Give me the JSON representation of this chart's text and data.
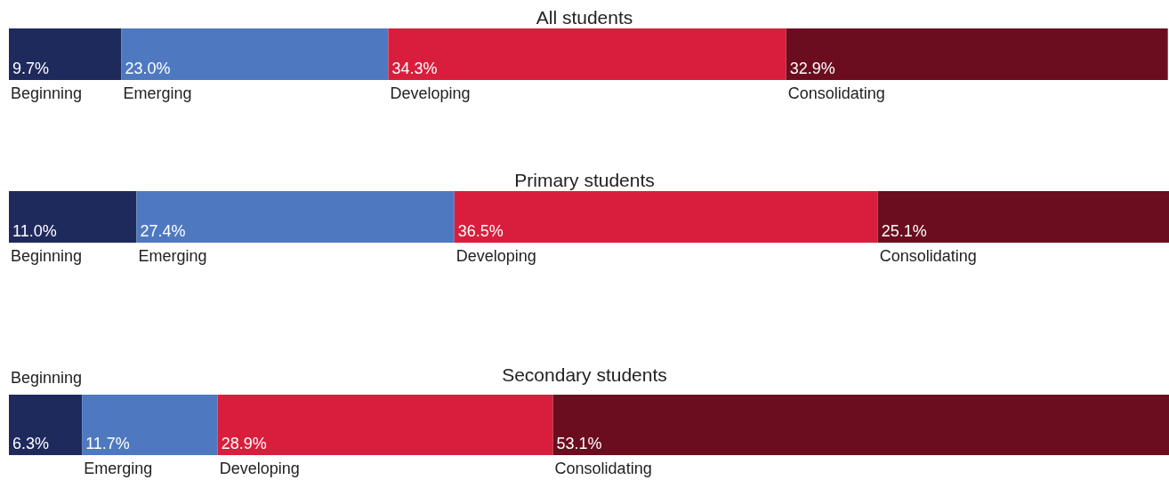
{
  "chart_data": [
    {
      "type": "bar",
      "title": "All students",
      "orientation": "horizontal",
      "stacked": true,
      "categories": [
        null
      ],
      "xlim": [
        0,
        100
      ],
      "tick_labels": false,
      "series": [
        {
          "name": "Beginning",
          "color": "#1f2a5c",
          "values": [
            9.7
          ],
          "value_labels": [
            "9.7%"
          ]
        },
        {
          "name": "Emerging",
          "color": "#4e79c0",
          "values": [
            23.0
          ],
          "value_labels": [
            "23.0%"
          ]
        },
        {
          "name": "Developing",
          "color": "#d81e3c",
          "values": [
            34.3
          ],
          "value_labels": [
            "34.3%"
          ]
        },
        {
          "name": "Consolidating",
          "color": "#6b0d1e",
          "values": [
            32.9
          ],
          "value_labels": [
            "32.9%"
          ]
        }
      ]
    },
    {
      "type": "bar",
      "title": "Primary students",
      "orientation": "horizontal",
      "stacked": true,
      "categories": [
        null
      ],
      "xlim": [
        0,
        100
      ],
      "tick_labels": false,
      "series": [
        {
          "name": "Beginning",
          "color": "#1f2a5c",
          "values": [
            11.0
          ],
          "value_labels": [
            "11.0%"
          ]
        },
        {
          "name": "Emerging",
          "color": "#4e79c0",
          "values": [
            27.4
          ],
          "value_labels": [
            "27.4%"
          ]
        },
        {
          "name": "Developing",
          "color": "#d81e3c",
          "values": [
            36.5
          ],
          "value_labels": [
            "36.5%"
          ]
        },
        {
          "name": "Consolidating",
          "color": "#6b0d1e",
          "values": [
            25.1
          ],
          "value_labels": [
            "25.1%"
          ]
        }
      ]
    },
    {
      "type": "bar",
      "title": "Secondary students",
      "orientation": "horizontal",
      "stacked": true,
      "categories": [
        null
      ],
      "xlim": [
        0,
        100
      ],
      "tick_labels": false,
      "series": [
        {
          "name": "Beginning",
          "color": "#1f2a5c",
          "values": [
            6.3
          ],
          "value_labels": [
            "6.3%"
          ]
        },
        {
          "name": "Emerging",
          "color": "#4e79c0",
          "values": [
            11.7
          ],
          "value_labels": [
            "11.7%"
          ]
        },
        {
          "name": "Developing",
          "color": "#d81e3c",
          "values": [
            28.9
          ],
          "value_labels": [
            "28.9%"
          ]
        },
        {
          "name": "Consolidating",
          "color": "#6b0d1e",
          "values": [
            53.1
          ],
          "value_labels": [
            "53.1%"
          ]
        }
      ]
    }
  ]
}
